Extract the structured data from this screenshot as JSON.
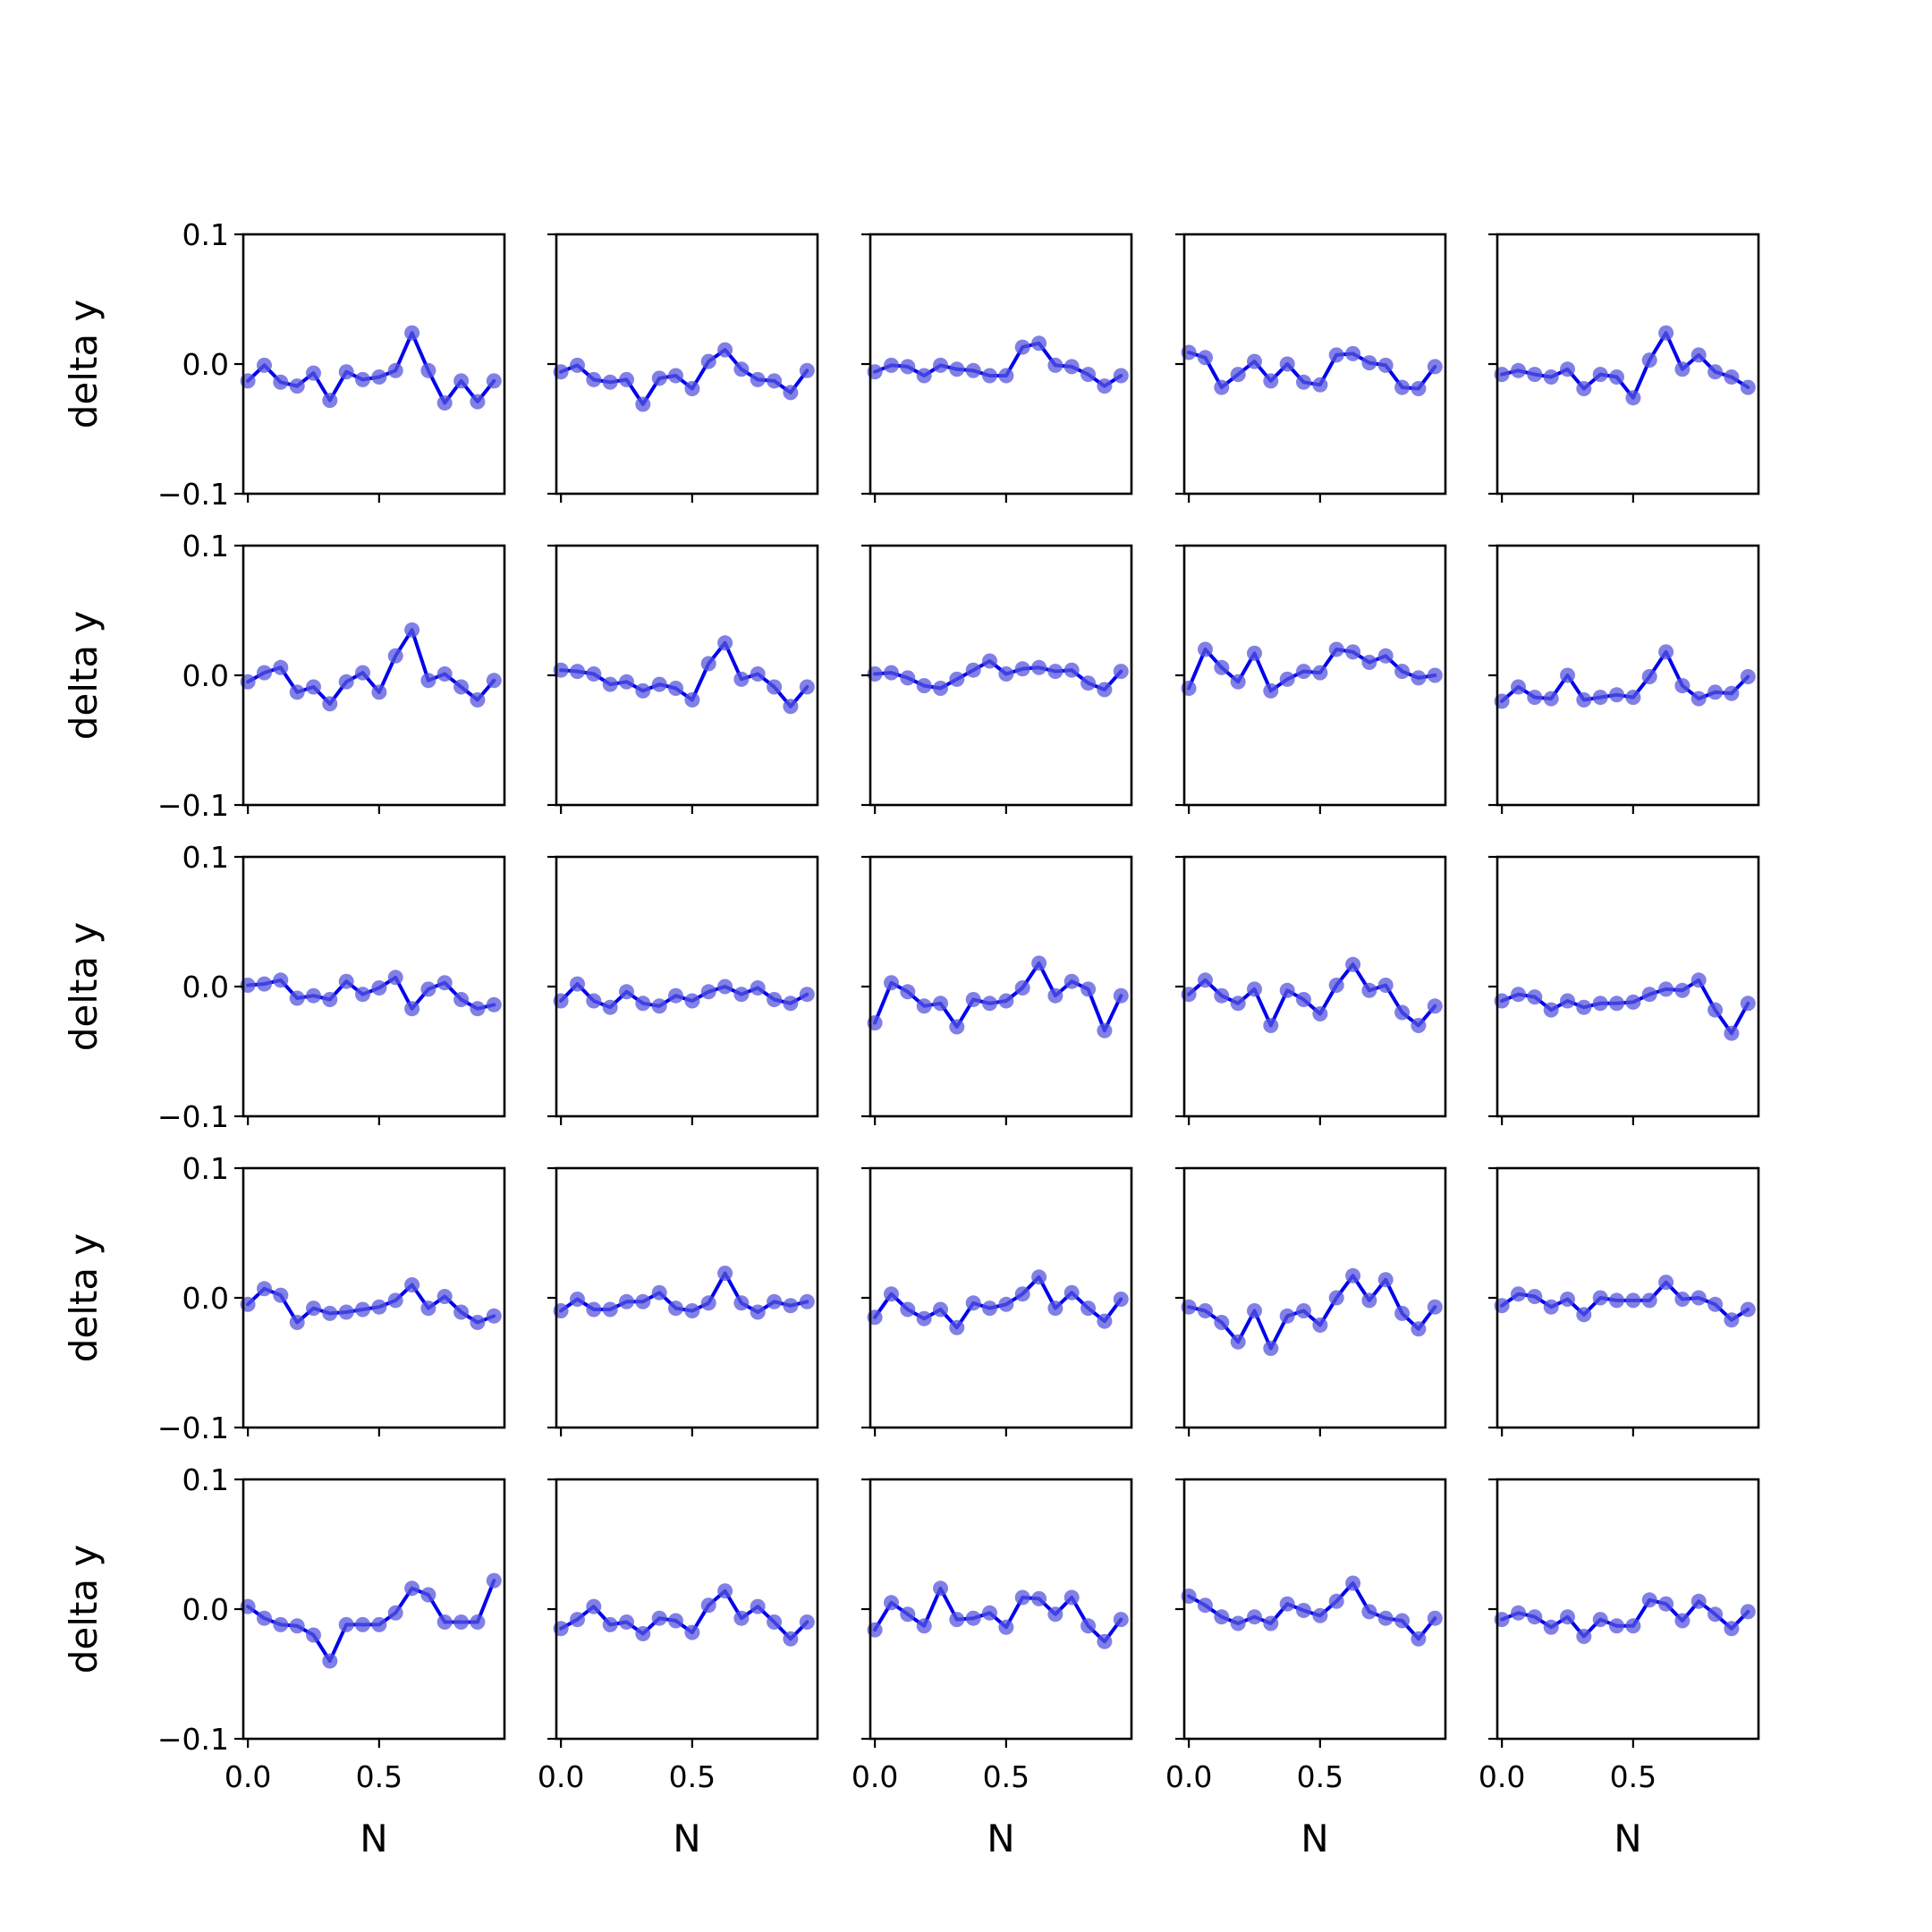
{
  "chart_data": {
    "type": "line",
    "layout": "5x5 grid of subplots",
    "xlabel": "N",
    "ylabel": "delta y",
    "xlim": [
      -0.0175,
      0.9775
    ],
    "ylim": [
      -0.1,
      0.1
    ],
    "x_ticks": [
      0.0,
      0.5
    ],
    "x_tick_labels": [
      "0.0",
      "0.5"
    ],
    "y_ticks": [
      0.1,
      0.0,
      -0.1
    ],
    "y_tick_labels": [
      "0.1",
      "0.0",
      "−0.1"
    ],
    "x": [
      0.0,
      0.0625,
      0.125,
      0.1875,
      0.25,
      0.3125,
      0.375,
      0.4375,
      0.5,
      0.5625,
      0.625,
      0.6875,
      0.75,
      0.8125,
      0.875,
      0.9375
    ],
    "line_color": "#0000ee",
    "marker_color": "#5555dd",
    "panels": [
      {
        "values": [
          -0.013,
          -0.001,
          -0.014,
          -0.017,
          -0.007,
          -0.028,
          -0.006,
          -0.012,
          -0.01,
          -0.005,
          0.024,
          -0.005,
          -0.03,
          -0.013,
          -0.029,
          -0.013
        ]
      },
      {
        "values": [
          -0.006,
          -0.001,
          -0.012,
          -0.014,
          -0.012,
          -0.031,
          -0.011,
          -0.009,
          -0.019,
          0.002,
          0.011,
          -0.004,
          -0.012,
          -0.013,
          -0.022,
          -0.005
        ]
      },
      {
        "values": [
          -0.006,
          -0.001,
          -0.002,
          -0.009,
          -0.001,
          -0.004,
          -0.005,
          -0.009,
          -0.009,
          0.013,
          0.016,
          -0.001,
          -0.002,
          -0.008,
          -0.017,
          -0.009
        ]
      },
      {
        "values": [
          0.009,
          0.005,
          -0.018,
          -0.008,
          0.002,
          -0.013,
          0.0,
          -0.014,
          -0.016,
          0.007,
          0.008,
          0.001,
          -0.001,
          -0.018,
          -0.019,
          -0.002
        ]
      },
      {
        "values": [
          -0.008,
          -0.005,
          -0.008,
          -0.01,
          -0.004,
          -0.019,
          -0.008,
          -0.01,
          -0.026,
          0.003,
          0.024,
          -0.004,
          0.007,
          -0.006,
          -0.01,
          -0.018
        ]
      },
      {
        "values": [
          -0.005,
          0.002,
          0.006,
          -0.013,
          -0.009,
          -0.022,
          -0.005,
          0.002,
          -0.013,
          0.015,
          0.035,
          -0.004,
          0.001,
          -0.009,
          -0.019,
          -0.004
        ]
      },
      {
        "values": [
          0.004,
          0.003,
          0.001,
          -0.007,
          -0.005,
          -0.012,
          -0.007,
          -0.01,
          -0.019,
          0.009,
          0.025,
          -0.003,
          0.001,
          -0.009,
          -0.024,
          -0.009
        ]
      },
      {
        "values": [
          0.001,
          0.002,
          -0.002,
          -0.008,
          -0.01,
          -0.003,
          0.004,
          0.011,
          0.001,
          0.005,
          0.006,
          0.003,
          0.004,
          -0.006,
          -0.011,
          0.003
        ]
      },
      {
        "values": [
          -0.01,
          0.02,
          0.006,
          -0.005,
          0.017,
          -0.012,
          -0.003,
          0.003,
          0.002,
          0.02,
          0.018,
          0.01,
          0.015,
          0.003,
          -0.002,
          0.0
        ]
      },
      {
        "values": [
          -0.02,
          -0.009,
          -0.017,
          -0.018,
          0.0,
          -0.019,
          -0.017,
          -0.015,
          -0.017,
          -0.001,
          0.018,
          -0.008,
          -0.018,
          -0.013,
          -0.014,
          -0.001
        ]
      },
      {
        "values": [
          0.001,
          0.002,
          0.005,
          -0.009,
          -0.007,
          -0.01,
          0.004,
          -0.006,
          -0.001,
          0.007,
          -0.017,
          -0.002,
          0.003,
          -0.01,
          -0.017,
          -0.014
        ]
      },
      {
        "values": [
          -0.011,
          0.002,
          -0.011,
          -0.016,
          -0.004,
          -0.013,
          -0.015,
          -0.007,
          -0.011,
          -0.004,
          0.0,
          -0.006,
          -0.001,
          -0.01,
          -0.013,
          -0.006
        ]
      },
      {
        "values": [
          -0.028,
          0.003,
          -0.004,
          -0.015,
          -0.013,
          -0.031,
          -0.01,
          -0.013,
          -0.011,
          -0.001,
          0.018,
          -0.007,
          0.004,
          -0.002,
          -0.034,
          -0.007
        ]
      },
      {
        "values": [
          -0.006,
          0.005,
          -0.007,
          -0.013,
          -0.002,
          -0.03,
          -0.003,
          -0.01,
          -0.021,
          0.001,
          0.017,
          -0.003,
          0.001,
          -0.02,
          -0.03,
          -0.015
        ]
      },
      {
        "values": [
          -0.011,
          -0.006,
          -0.008,
          -0.018,
          -0.011,
          -0.016,
          -0.013,
          -0.013,
          -0.012,
          -0.006,
          -0.002,
          -0.003,
          0.005,
          -0.018,
          -0.036,
          -0.013
        ]
      },
      {
        "values": [
          -0.005,
          0.007,
          0.002,
          -0.019,
          -0.008,
          -0.012,
          -0.011,
          -0.009,
          -0.007,
          -0.002,
          0.01,
          -0.008,
          0.001,
          -0.011,
          -0.019,
          -0.014
        ]
      },
      {
        "values": [
          -0.01,
          -0.001,
          -0.009,
          -0.009,
          -0.003,
          -0.003,
          0.004,
          -0.008,
          -0.01,
          -0.004,
          0.019,
          -0.004,
          -0.011,
          -0.003,
          -0.006,
          -0.003
        ]
      },
      {
        "values": [
          -0.015,
          0.003,
          -0.009,
          -0.016,
          -0.009,
          -0.023,
          -0.004,
          -0.008,
          -0.005,
          0.003,
          0.016,
          -0.008,
          0.004,
          -0.008,
          -0.018,
          -0.001
        ]
      },
      {
        "values": [
          -0.007,
          -0.01,
          -0.019,
          -0.034,
          -0.01,
          -0.039,
          -0.014,
          -0.01,
          -0.021,
          0.0,
          0.017,
          -0.002,
          0.014,
          -0.012,
          -0.024,
          -0.007
        ]
      },
      {
        "values": [
          -0.006,
          0.003,
          0.001,
          -0.007,
          -0.001,
          -0.013,
          0.0,
          -0.002,
          -0.002,
          -0.002,
          0.012,
          -0.001,
          0.0,
          -0.005,
          -0.017,
          -0.009
        ]
      },
      {
        "values": [
          0.002,
          -0.007,
          -0.012,
          -0.013,
          -0.02,
          -0.04,
          -0.012,
          -0.012,
          -0.012,
          -0.003,
          0.016,
          0.011,
          -0.01,
          -0.01,
          -0.01,
          0.022
        ]
      },
      {
        "values": [
          -0.015,
          -0.008,
          0.002,
          -0.012,
          -0.01,
          -0.019,
          -0.007,
          -0.009,
          -0.018,
          0.003,
          0.014,
          -0.007,
          0.002,
          -0.01,
          -0.023,
          -0.01
        ]
      },
      {
        "values": [
          -0.016,
          0.005,
          -0.004,
          -0.013,
          0.016,
          -0.008,
          -0.007,
          -0.003,
          -0.014,
          0.009,
          0.008,
          -0.004,
          0.009,
          -0.013,
          -0.025,
          -0.008
        ]
      },
      {
        "values": [
          0.01,
          0.003,
          -0.006,
          -0.011,
          -0.006,
          -0.011,
          0.004,
          -0.001,
          -0.005,
          0.006,
          0.02,
          -0.002,
          -0.007,
          -0.009,
          -0.023,
          -0.007
        ]
      },
      {
        "values": [
          -0.008,
          -0.003,
          -0.006,
          -0.014,
          -0.006,
          -0.021,
          -0.008,
          -0.013,
          -0.013,
          0.007,
          0.004,
          -0.009,
          0.006,
          -0.004,
          -0.015,
          -0.002
        ]
      }
    ]
  }
}
